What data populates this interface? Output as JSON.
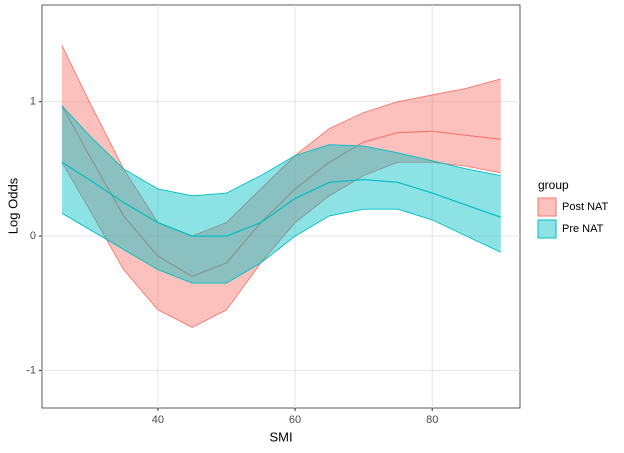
{
  "chart_data": {
    "type": "line",
    "x_label": "SMI",
    "y_label": "Log Odds",
    "legend_title": "group",
    "x": [
      26,
      30,
      35,
      40,
      45,
      50,
      55,
      60,
      65,
      70,
      75,
      80,
      85,
      90
    ],
    "series": [
      {
        "name": "Post NAT",
        "color": "#F8766D",
        "values": [
          0.97,
          0.6,
          0.15,
          -0.15,
          -0.3,
          -0.2,
          0.1,
          0.35,
          0.55,
          0.7,
          0.77,
          0.78,
          0.75,
          0.72
        ],
        "lower": [
          0.55,
          0.2,
          -0.25,
          -0.55,
          -0.68,
          -0.55,
          -0.2,
          0.1,
          0.3,
          0.45,
          0.55,
          0.55,
          0.52,
          0.47
        ],
        "upper": [
          1.42,
          1.0,
          0.5,
          0.1,
          0.0,
          0.1,
          0.35,
          0.6,
          0.8,
          0.92,
          1.0,
          1.05,
          1.1,
          1.17
        ]
      },
      {
        "name": "Pre NAT",
        "color": "#00BFC4",
        "values": [
          0.55,
          0.42,
          0.25,
          0.1,
          0.0,
          0.0,
          0.1,
          0.28,
          0.4,
          0.42,
          0.4,
          0.32,
          0.23,
          0.14
        ],
        "lower": [
          0.17,
          0.05,
          -0.1,
          -0.25,
          -0.35,
          -0.35,
          -0.2,
          0.0,
          0.15,
          0.2,
          0.2,
          0.12,
          0.0,
          -0.12
        ],
        "upper": [
          0.97,
          0.75,
          0.5,
          0.35,
          0.3,
          0.32,
          0.45,
          0.6,
          0.68,
          0.67,
          0.62,
          0.56,
          0.5,
          0.45
        ]
      }
    ],
    "xlim": [
      23.1,
      92.8
    ],
    "xticks": [
      40,
      60,
      80
    ],
    "ylim": [
      -1.28,
      1.72
    ],
    "yticks": [
      -1,
      0,
      1
    ],
    "grid": true
  }
}
